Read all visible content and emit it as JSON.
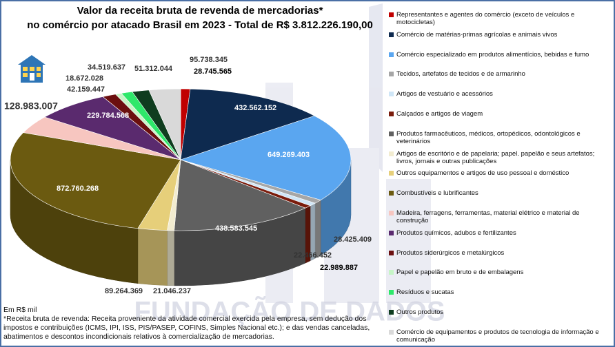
{
  "title_lines": [
    "Valor da receita bruta de revenda de mercadorias*",
    "no comércio por atacado Brasil em 2023 - Total de R$ 3.812.226.190,00"
  ],
  "chart_data": {
    "type": "pie",
    "categories": [
      "Representantes e agentes do comércio (exceto de veículos e motocicletas)",
      "Comércio de matérias-primas agrícolas e animais vivos",
      "Comércio especializado em produtos alimentícios, bebidas e fumo",
      "Tecidos, artefatos de tecidos e de armarinho",
      "Artigos de vestuário e acessórios",
      "Calçados e artigos de viagem",
      "Produtos farmacêuticos, médicos, ortopédicos, odontológicos e veterinários",
      "Artigos de escritório e de papelaria; papel. papelão e seus artefatos; livros, jornais e outras publicações",
      "Outros equipamentos e artigos de uso pessoal e doméstico",
      "Combustíveis e lubrificantes",
      "Madeira, ferragens, ferramentas, material elétrico e material de construção",
      "Produtos químicos, adubos e fertilizantes",
      "Produtos siderúrgicos e metalúrgicos",
      "Papel e papelão em bruto e de embalagens",
      "Resíduos e sucatas",
      "Outros produtos",
      "Comércio de equipamentos e produtos de tecnologia de informação e comunicação"
    ],
    "values": [
      28745565,
      432562152,
      649269403,
      28425409,
      22989887,
      22466452,
      438583545,
      21046237,
      89264369,
      872760268,
      128983007,
      229784568,
      42159447,
      18672028,
      34519637,
      51312044,
      95738345
    ],
    "value_labels": [
      "28.745.565",
      "432.562.152",
      "649.269.403",
      "28.425.409",
      "22.989.887",
      "22.466.452",
      "438.583.545",
      "21.046.237",
      "89.264.369",
      "872.760.268",
      "128.983.007",
      "229.784.568",
      "42.159.447",
      "18.672.028",
      "34.519.637",
      "51.312.044",
      "95.738.345"
    ],
    "colors": [
      "#c00000",
      "#0e2a4f",
      "#5aa6f0",
      "#a6a6a6",
      "#cfe6f7",
      "#7a1c0c",
      "#606060",
      "#f2ecd0",
      "#e6cf7a",
      "#6b5a10",
      "#f7c6c0",
      "#5a2a6e",
      "#6b0f0f",
      "#c6f5c6",
      "#2ee86a",
      "#0f3d1f",
      "#d9d9d9"
    ]
  },
  "notes": {
    "unit": "Em R$ mil",
    "footnote": "*Receita bruta de revenda: Receita proveniente da atividade comercial exercida pela empresa, sem dedução dos impostos e contribuições (ICMS, IPI, ISS, PIS/PASEP, COFINS, Simples Nacional etc.); e das vendas canceladas, abatimentos e descontos incondicionais relativos à comercialização de mercadorias."
  },
  "watermark": "FUNDAÇÃO DE DADOS"
}
